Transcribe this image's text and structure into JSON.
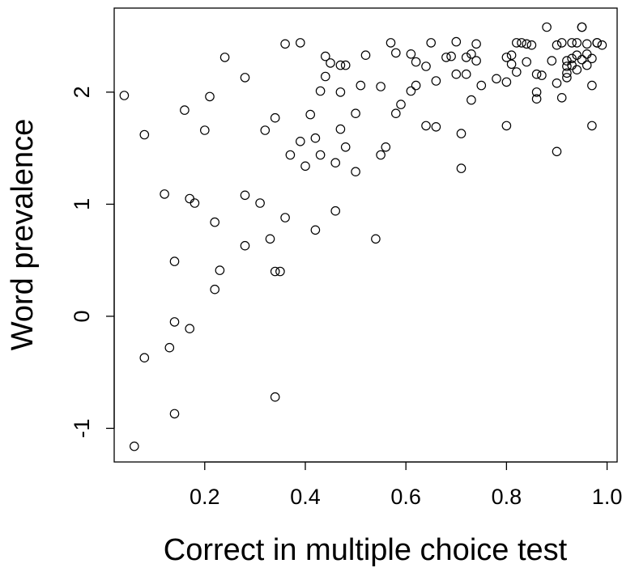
{
  "chart_data": {
    "type": "scatter",
    "title": "",
    "xlabel": "Correct in multiple choice test",
    "ylabel": "Word prevalence",
    "xlim": [
      0.02,
      1.02
    ],
    "ylim": [
      -1.3,
      2.75
    ],
    "xticks": [
      0.2,
      0.4,
      0.6,
      0.8,
      1.0
    ],
    "xtick_labels": [
      "0.2",
      "0.4",
      "0.6",
      "0.8",
      "1.0"
    ],
    "yticks": [
      -1,
      0,
      1,
      2
    ],
    "ytick_labels": [
      "-1",
      "0",
      "1",
      "2"
    ],
    "grid": false,
    "marker": "open-circle",
    "marker_color": "#000000",
    "series": [
      {
        "points": [
          [
            0.04,
            1.97
          ],
          [
            0.06,
            -1.16
          ],
          [
            0.08,
            1.62
          ],
          [
            0.08,
            -0.37
          ],
          [
            0.12,
            1.09
          ],
          [
            0.13,
            -0.28
          ],
          [
            0.14,
            0.49
          ],
          [
            0.14,
            -0.05
          ],
          [
            0.14,
            -0.87
          ],
          [
            0.16,
            1.84
          ],
          [
            0.17,
            1.05
          ],
          [
            0.17,
            -0.11
          ],
          [
            0.18,
            1.01
          ],
          [
            0.2,
            1.66
          ],
          [
            0.21,
            1.96
          ],
          [
            0.22,
            0.24
          ],
          [
            0.22,
            0.84
          ],
          [
            0.23,
            0.41
          ],
          [
            0.24,
            2.31
          ],
          [
            0.28,
            2.13
          ],
          [
            0.28,
            1.08
          ],
          [
            0.28,
            0.63
          ],
          [
            0.31,
            1.01
          ],
          [
            0.32,
            1.66
          ],
          [
            0.33,
            0.69
          ],
          [
            0.34,
            0.4
          ],
          [
            0.34,
            1.77
          ],
          [
            0.34,
            -0.72
          ],
          [
            0.35,
            0.4
          ],
          [
            0.36,
            0.88
          ],
          [
            0.36,
            2.43
          ],
          [
            0.37,
            1.44
          ],
          [
            0.39,
            1.56
          ],
          [
            0.39,
            2.44
          ],
          [
            0.4,
            1.34
          ],
          [
            0.41,
            1.8
          ],
          [
            0.42,
            1.59
          ],
          [
            0.42,
            0.77
          ],
          [
            0.43,
            2.01
          ],
          [
            0.43,
            1.44
          ],
          [
            0.44,
            2.14
          ],
          [
            0.44,
            2.32
          ],
          [
            0.45,
            2.26
          ],
          [
            0.46,
            1.37
          ],
          [
            0.46,
            0.94
          ],
          [
            0.47,
            1.67
          ],
          [
            0.47,
            2.0
          ],
          [
            0.47,
            2.24
          ],
          [
            0.48,
            2.24
          ],
          [
            0.48,
            1.51
          ],
          [
            0.5,
            1.29
          ],
          [
            0.5,
            1.81
          ],
          [
            0.51,
            2.06
          ],
          [
            0.52,
            2.33
          ],
          [
            0.54,
            0.69
          ],
          [
            0.55,
            2.05
          ],
          [
            0.55,
            1.44
          ],
          [
            0.56,
            1.51
          ],
          [
            0.57,
            2.44
          ],
          [
            0.58,
            1.81
          ],
          [
            0.58,
            2.35
          ],
          [
            0.59,
            1.89
          ],
          [
            0.61,
            2.01
          ],
          [
            0.61,
            2.34
          ],
          [
            0.62,
            2.27
          ],
          [
            0.62,
            2.06
          ],
          [
            0.64,
            2.23
          ],
          [
            0.64,
            1.7
          ],
          [
            0.65,
            2.44
          ],
          [
            0.66,
            2.1
          ],
          [
            0.66,
            1.69
          ],
          [
            0.68,
            2.31
          ],
          [
            0.69,
            2.32
          ],
          [
            0.7,
            2.45
          ],
          [
            0.7,
            2.16
          ],
          [
            0.71,
            1.63
          ],
          [
            0.71,
            1.32
          ],
          [
            0.72,
            2.16
          ],
          [
            0.72,
            2.31
          ],
          [
            0.73,
            1.93
          ],
          [
            0.73,
            2.34
          ],
          [
            0.74,
            2.28
          ],
          [
            0.74,
            2.43
          ],
          [
            0.75,
            2.06
          ],
          [
            0.78,
            2.12
          ],
          [
            0.8,
            2.09
          ],
          [
            0.8,
            1.7
          ],
          [
            0.8,
            2.31
          ],
          [
            0.81,
            2.25
          ],
          [
            0.81,
            2.33
          ],
          [
            0.82,
            2.18
          ],
          [
            0.82,
            2.44
          ],
          [
            0.83,
            2.44
          ],
          [
            0.84,
            2.27
          ],
          [
            0.84,
            2.43
          ],
          [
            0.85,
            2.42
          ],
          [
            0.86,
            2.0
          ],
          [
            0.86,
            2.16
          ],
          [
            0.86,
            1.94
          ],
          [
            0.87,
            2.15
          ],
          [
            0.88,
            2.58
          ],
          [
            0.89,
            2.28
          ],
          [
            0.9,
            2.08
          ],
          [
            0.9,
            1.47
          ],
          [
            0.9,
            2.42
          ],
          [
            0.91,
            1.95
          ],
          [
            0.91,
            2.44
          ],
          [
            0.92,
            2.13
          ],
          [
            0.92,
            2.17
          ],
          [
            0.92,
            2.23
          ],
          [
            0.92,
            2.28
          ],
          [
            0.93,
            2.3
          ],
          [
            0.93,
            2.44
          ],
          [
            0.93,
            2.24
          ],
          [
            0.94,
            2.44
          ],
          [
            0.94,
            2.2
          ],
          [
            0.94,
            2.33
          ],
          [
            0.95,
            2.29
          ],
          [
            0.95,
            2.58
          ],
          [
            0.95,
            2.58
          ],
          [
            0.96,
            2.24
          ],
          [
            0.96,
            2.34
          ],
          [
            0.96,
            2.43
          ],
          [
            0.97,
            2.06
          ],
          [
            0.97,
            1.7
          ],
          [
            0.97,
            2.3
          ],
          [
            0.98,
            2.44
          ],
          [
            0.98,
            2.44
          ],
          [
            0.99,
            2.42
          ]
        ]
      }
    ]
  }
}
